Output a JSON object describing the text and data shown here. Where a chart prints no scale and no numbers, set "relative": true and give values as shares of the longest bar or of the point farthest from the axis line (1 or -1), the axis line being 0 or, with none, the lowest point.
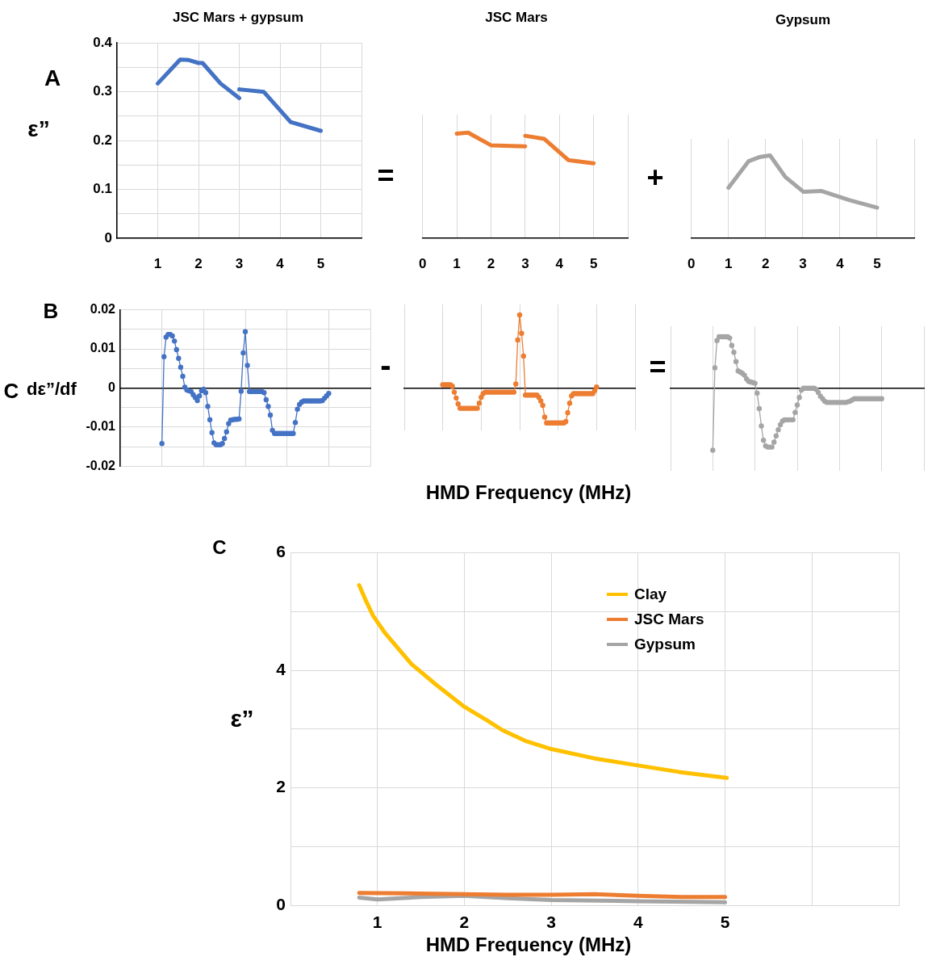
{
  "chart_data": [
    {
      "type": "line",
      "title": "JSC Mars + gypsum",
      "ylabel": "ε”",
      "annotations": [
        "A"
      ],
      "series": [
        {
          "color": "#4472c4",
          "x": [
            1,
            1.55,
            1.76,
            2,
            2.1,
            2.54,
            3
          ],
          "values": [
            0.317,
            0.366,
            0.365,
            0.359,
            0.359,
            0.317,
            0.287
          ]
        },
        {
          "color": "#4472c4",
          "x": [
            3,
            3.6,
            4.26,
            5
          ],
          "values": [
            0.305,
            0.3,
            0.238,
            0.22
          ]
        }
      ],
      "xlim": [
        0,
        6
      ],
      "xticks": [
        {
          "value": 0,
          "label": null
        },
        1,
        2,
        3,
        4,
        5,
        {
          "value": 6,
          "label": null
        }
      ],
      "ylim": [
        0,
        0.4
      ],
      "yticks": [
        0,
        {
          "value": 0.05,
          "label": null
        },
        0.1,
        {
          "value": 0.15,
          "label": null
        },
        0.2,
        {
          "value": 0.25,
          "label": null
        },
        0.3,
        {
          "value": 0.35,
          "label": null
        },
        0.4
      ],
      "grid": true,
      "marker": "none"
    },
    {
      "type": "line",
      "title": "JSC Mars",
      "annotations": [
        "="
      ],
      "relative": true,
      "series": [
        {
          "color": "#ed7d31",
          "x": [
            1,
            1.33,
            2,
            3
          ],
          "values": [
            0.99,
            1,
            0.88,
            0.87
          ]
        },
        {
          "color": "#ed7d31",
          "x": [
            3,
            3.56,
            4.26,
            5
          ],
          "values": [
            0.97,
            0.94,
            0.74,
            0.71
          ]
        }
      ],
      "xlim": [
        0,
        6
      ],
      "xticks": [
        0,
        1,
        2,
        3,
        4,
        5,
        {
          "value": 6,
          "label": null
        }
      ],
      "grid": "x",
      "marker": "none"
    },
    {
      "type": "line",
      "title": "Gypsum",
      "annotations": [
        "+"
      ],
      "relative": true,
      "series": [
        {
          "color": "#a5a5a5",
          "x": [
            1,
            1.54,
            1.83,
            2.12,
            2.53,
            3.02,
            3.51,
            4.26,
            5
          ],
          "values": [
            0.61,
            0.93,
            0.98,
            1,
            0.74,
            0.56,
            0.57,
            0.46,
            0.37
          ]
        }
      ],
      "xlim": [
        0,
        6
      ],
      "xticks": [
        0,
        1,
        2,
        3,
        4,
        5,
        {
          "value": 6,
          "label": null
        }
      ],
      "grid": "x",
      "marker": "none"
    },
    {
      "type": "line",
      "ylabel": "dε”/df",
      "annotations": [
        "B",
        "C"
      ],
      "categories": [
        null,
        null,
        null,
        null,
        null,
        null,
        null,
        null,
        null,
        null,
        null,
        null,
        null,
        null,
        null,
        null,
        null,
        null,
        null,
        null,
        null,
        null,
        null,
        null,
        null,
        null,
        null,
        null,
        null,
        null,
        null,
        null,
        null,
        null,
        null,
        null,
        null,
        null,
        null,
        null,
        null,
        null,
        null,
        null,
        null,
        null,
        null,
        null,
        null,
        null,
        null,
        null,
        null,
        null,
        null,
        null,
        null,
        null,
        null,
        null,
        null,
        null,
        null,
        null,
        null,
        null,
        null,
        null,
        null,
        null,
        null,
        null,
        null,
        null,
        null,
        null,
        null,
        null,
        null,
        null,
        null,
        null,
        null,
        null,
        null,
        null,
        null,
        null,
        null,
        null,
        null,
        null,
        null,
        null,
        null,
        null,
        null,
        null,
        null,
        null,
        null,
        null,
        null,
        null,
        null,
        null,
        null,
        null,
        null,
        null,
        null,
        null,
        null,
        null,
        null,
        null,
        null,
        null,
        null,
        null,
        null
      ],
      "series": [
        {
          "color": "#4472c4",
          "values": [
            null,
            null,
            null,
            null,
            null,
            null,
            null,
            null,
            null,
            null,
            null,
            null,
            null,
            null,
            null,
            null,
            null,
            null,
            null,
            null,
            -0.0142,
            0.008,
            0.013,
            0.0137,
            0.0137,
            0.0133,
            0.012,
            0.0098,
            0.0076,
            0.0053,
            0.003,
            0.0002,
            -0.0005,
            -0.0007,
            -0.0009,
            -0.0017,
            -0.0024,
            -0.0032,
            -0.002,
            -0.0007,
            -0.0003,
            -0.0012,
            -0.0047,
            -0.0081,
            -0.0114,
            -0.014,
            -0.0145,
            -0.0145,
            -0.0145,
            -0.0142,
            -0.0129,
            -0.0112,
            -0.0091,
            -0.0082,
            -0.0081,
            -0.008,
            -0.008,
            -0.0079,
            -0.0008,
            0.009,
            0.0144,
            0.0058,
            -0.0009,
            -0.0009,
            -0.0009,
            -0.0009,
            -0.0009,
            -0.0009,
            -0.0009,
            -0.0012,
            -0.003,
            -0.0047,
            -0.0069,
            -0.0108,
            -0.0116,
            -0.0116,
            -0.0116,
            -0.0116,
            -0.0116,
            -0.0116,
            -0.0116,
            -0.0116,
            -0.0116,
            -0.0116,
            -0.0088,
            -0.0054,
            -0.0042,
            -0.0036,
            -0.0033,
            -0.0033,
            -0.0033,
            -0.0033,
            -0.0033,
            -0.0033,
            -0.0033,
            -0.0033,
            -0.0033,
            -0.0032,
            -0.0026,
            -0.002,
            -0.0014,
            null,
            null,
            null,
            null,
            null,
            null,
            null,
            null,
            null,
            null,
            null,
            null,
            null,
            null,
            null,
            null,
            null,
            null,
            null,
            null
          ]
        }
      ],
      "ylim": [
        -0.02,
        0.02
      ],
      "yticks": [
        -0.02,
        {
          "value": -0.015,
          "label": null
        },
        -0.01,
        {
          "value": -0.005,
          "label": null
        },
        0,
        {
          "value": 0.005,
          "label": null
        },
        0.01,
        {
          "value": 0.015,
          "label": null
        },
        0.02
      ],
      "tick_labels": "y",
      "grid": true,
      "marker": "circle"
    },
    {
      "type": "line",
      "xlabel": "HMD Frequency (MHz)",
      "annotations": [
        "-"
      ],
      "relative": true,
      "categories": [
        null,
        null,
        null,
        null,
        null,
        null,
        null,
        null,
        null,
        null,
        null,
        null,
        null,
        null,
        null,
        null,
        null,
        null,
        null,
        null,
        null,
        null,
        null,
        null,
        null,
        null,
        null,
        null,
        null,
        null,
        null,
        null,
        null,
        null,
        null,
        null,
        null,
        null,
        null,
        null,
        null,
        null,
        null,
        null,
        null,
        null,
        null,
        null,
        null,
        null,
        null,
        null,
        null,
        null,
        null,
        null,
        null,
        null,
        null,
        null,
        null,
        null,
        null,
        null,
        null,
        null,
        null,
        null,
        null,
        null,
        null,
        null,
        null,
        null,
        null,
        null,
        null,
        null,
        null,
        null,
        null,
        null,
        null,
        null,
        null,
        null,
        null,
        null,
        null,
        null,
        null,
        null,
        null,
        null,
        null,
        null,
        null,
        null,
        null,
        null,
        null,
        null,
        null,
        null,
        null,
        null,
        null,
        null,
        null,
        null,
        null,
        null,
        null,
        null,
        null,
        null,
        null,
        null,
        null,
        null,
        null
      ],
      "series": [
        {
          "color": "#ed7d31",
          "values": [
            null,
            null,
            null,
            null,
            null,
            null,
            null,
            null,
            null,
            null,
            null,
            null,
            null,
            null,
            null,
            null,
            null,
            null,
            null,
            null,
            0.05,
            0.05,
            0.05,
            0.05,
            0.05,
            0.03,
            -0.05,
            -0.13,
            -0.21,
            -0.27,
            -0.27,
            -0.27,
            -0.27,
            -0.27,
            -0.27,
            -0.27,
            -0.27,
            -0.27,
            -0.27,
            -0.2,
            -0.12,
            -0.07,
            -0.05,
            -0.05,
            -0.05,
            -0.05,
            -0.05,
            -0.05,
            -0.05,
            -0.05,
            -0.05,
            -0.05,
            -0.05,
            -0.05,
            -0.05,
            -0.05,
            -0.05,
            -0.05,
            0.06,
            0.66,
            1,
            0.75,
            0.44,
            -0.09,
            -0.09,
            -0.09,
            -0.09,
            -0.09,
            -0.09,
            -0.09,
            -0.12,
            -0.17,
            -0.23,
            -0.39,
            -0.47,
            -0.47,
            -0.47,
            -0.47,
            -0.47,
            -0.47,
            -0.47,
            -0.47,
            -0.47,
            -0.47,
            -0.45,
            -0.33,
            -0.2,
            -0.1,
            -0.07,
            -0.07,
            -0.07,
            -0.07,
            -0.07,
            -0.07,
            -0.07,
            -0.07,
            -0.07,
            -0.07,
            -0.07,
            -0.03,
            0.02,
            null,
            null,
            null,
            null,
            null,
            null,
            null,
            null,
            null,
            null,
            null,
            null,
            null,
            null,
            null,
            null,
            null,
            null,
            null,
            null
          ]
        }
      ],
      "tick_labels": false,
      "grid": "x",
      "marker": "circle"
    },
    {
      "type": "line",
      "annotations": [
        "="
      ],
      "relative": true,
      "categories": [
        null,
        null,
        null,
        null,
        null,
        null,
        null,
        null,
        null,
        null,
        null,
        null,
        null,
        null,
        null,
        null,
        null,
        null,
        null,
        null,
        null,
        null,
        null,
        null,
        null,
        null,
        null,
        null,
        null,
        null,
        null,
        null,
        null,
        null,
        null,
        null,
        null,
        null,
        null,
        null,
        null,
        null,
        null,
        null,
        null,
        null,
        null,
        null,
        null,
        null,
        null,
        null,
        null,
        null,
        null,
        null,
        null,
        null,
        null,
        null,
        null,
        null,
        null,
        null,
        null,
        null,
        null,
        null,
        null,
        null,
        null,
        null,
        null,
        null,
        null,
        null,
        null,
        null,
        null,
        null,
        null,
        null,
        null,
        null,
        null,
        null,
        null,
        null,
        null,
        null,
        null,
        null,
        null,
        null,
        null,
        null,
        null,
        null,
        null,
        null,
        null,
        null,
        null,
        null,
        null,
        null,
        null,
        null,
        null,
        null,
        null,
        null,
        null,
        null,
        null,
        null,
        null,
        null,
        null,
        null,
        null
      ],
      "series": [
        {
          "color": "#a5a5a5",
          "values": [
            null,
            null,
            null,
            null,
            null,
            null,
            null,
            null,
            null,
            null,
            null,
            null,
            null,
            null,
            null,
            null,
            null,
            null,
            null,
            null,
            -1,
            0.33,
            0.77,
            0.83,
            0.83,
            0.83,
            0.83,
            0.83,
            0.81,
            0.69,
            0.58,
            0.43,
            0.28,
            0.26,
            0.24,
            0.21,
            0.15,
            0.11,
            0.1,
            0.09,
            0.08,
            -0.08,
            -0.33,
            -0.61,
            -0.84,
            -0.93,
            -0.95,
            -0.95,
            -0.95,
            -0.87,
            -0.77,
            -0.67,
            -0.59,
            -0.53,
            -0.51,
            -0.51,
            -0.51,
            -0.51,
            -0.51,
            -0.39,
            -0.27,
            -0.15,
            -0.03,
            0,
            0,
            0,
            0,
            0,
            0,
            -0.02,
            -0.07,
            -0.13,
            -0.17,
            -0.21,
            -0.23,
            -0.23,
            -0.23,
            -0.23,
            -0.23,
            -0.23,
            -0.23,
            -0.23,
            -0.23,
            -0.23,
            -0.22,
            -0.21,
            -0.19,
            -0.17,
            -0.17,
            -0.17,
            -0.17,
            -0.17,
            -0.17,
            -0.17,
            -0.17,
            -0.17,
            -0.17,
            -0.17,
            -0.17,
            -0.17,
            -0.17,
            null,
            null,
            null,
            null,
            null,
            null,
            null,
            null,
            null,
            null,
            null,
            null,
            null,
            null,
            null,
            null,
            null,
            null,
            null,
            null
          ]
        }
      ],
      "tick_labels": false,
      "grid": "x",
      "marker": "circle"
    },
    {
      "type": "line",
      "xlabel": "HMD Frequency (MHz)",
      "ylabel": "ε”",
      "annotations": [
        "C"
      ],
      "series": [
        {
          "name": "Clay",
          "color": "#ffc000",
          "x": [
            0.79,
            0.86,
            0.95,
            1.09,
            1.39,
            1.68,
            2,
            2.27,
            2.44,
            2.7,
            3,
            3.5,
            4,
            4.47,
            5.02
          ],
          "values": [
            5.45,
            5.21,
            4.93,
            4.63,
            4.11,
            3.75,
            3.38,
            3.14,
            2.98,
            2.8,
            2.66,
            2.5,
            2.38,
            2.27,
            2.17
          ]
        },
        {
          "name": "JSC Mars",
          "color": "#ed7d31",
          "x": [
            0.79,
            1.5,
            2.5,
            3,
            3.5,
            4,
            4.5,
            5
          ],
          "values": [
            0.21,
            0.2,
            0.18,
            0.18,
            0.19,
            0.16,
            0.14,
            0.14
          ]
        },
        {
          "name": "Gypsum",
          "color": "#a5a5a5",
          "x": [
            0.79,
            1,
            1.5,
            2,
            2.5,
            3,
            4,
            5
          ],
          "values": [
            0.13,
            0.1,
            0.14,
            0.16,
            0.12,
            0.09,
            0.07,
            0.05
          ]
        }
      ],
      "xlim": [
        0,
        7
      ],
      "xticks": [
        {
          "value": 0,
          "label": null
        },
        1,
        2,
        3,
        4,
        5,
        {
          "value": 6,
          "label": null
        },
        {
          "value": 7,
          "label": null
        }
      ],
      "ylim": [
        0,
        6
      ],
      "yticks": [
        0,
        {
          "value": 1,
          "label": null
        },
        2,
        {
          "value": 3,
          "label": null
        },
        4,
        {
          "value": 5,
          "label": null
        },
        6
      ],
      "grid": true,
      "legend": "top right",
      "marker": "none"
    }
  ]
}
